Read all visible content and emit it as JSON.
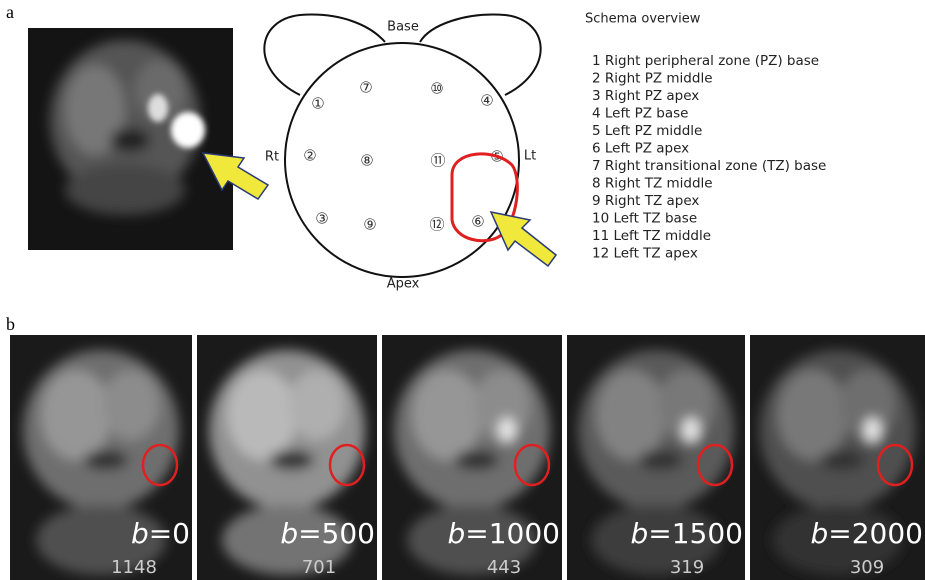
{
  "panel_a": {
    "label": "a",
    "schema": {
      "base": "Base",
      "apex": "Apex",
      "right": "Rt",
      "left": "Lt",
      "zones": [
        "①",
        "②",
        "③",
        "④",
        "⑤",
        "⑥",
        "⑦",
        "⑧",
        "⑨",
        "⑩",
        "⑪",
        "⑫"
      ]
    },
    "legend": {
      "title": "Schema overview",
      "items": [
        "1 Right peripheral zone (PZ) base",
        "2 Right PZ middle",
        "3 Right PZ apex",
        "4 Left PZ base",
        "5 Left PZ middle",
        "6 Left PZ apex",
        "7 Right transitional zone (TZ) base",
        "8 Right TZ middle",
        "9 Right TZ apex",
        "10 Left TZ base",
        "11 Left TZ middle",
        "12 Left TZ apex"
      ]
    }
  },
  "panel_b": {
    "label": "b",
    "images": [
      {
        "param": "b",
        "equals": "=0",
        "signal": 1148
      },
      {
        "param": "b",
        "equals": "=500",
        "signal": 701
      },
      {
        "param": "b",
        "equals": "=1000",
        "signal": 443
      },
      {
        "param": "b",
        "equals": "=1500",
        "signal": 319
      },
      {
        "param": "b",
        "equals": "=2000",
        "signal": 309
      }
    ]
  }
}
